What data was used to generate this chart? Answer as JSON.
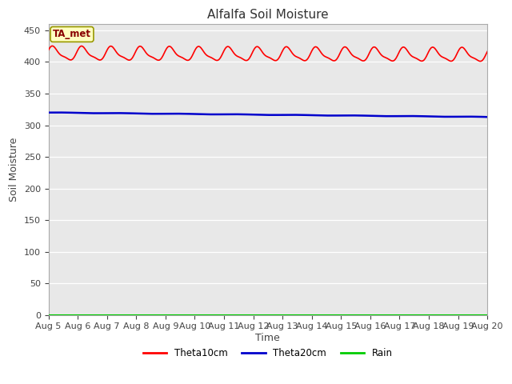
{
  "title": "Alfalfa Soil Moisture",
  "xlabel": "Time",
  "ylabel": "Soil Moisture",
  "annotation": "TA_met",
  "annotation_bg": "#ffffc0",
  "annotation_border": "#999900",
  "annotation_text_color": "#880000",
  "ylim": [
    0,
    460
  ],
  "yticks": [
    0,
    50,
    100,
    150,
    200,
    250,
    300,
    350,
    400,
    450
  ],
  "theta10_color": "#ff0000",
  "theta20_color": "#0000cc",
  "rain_color": "#00cc00",
  "background_color": "#e8e8e8",
  "grid_color": "#ffffff",
  "legend_labels": [
    "Theta10cm",
    "Theta20cm",
    "Rain"
  ],
  "title_fontsize": 11,
  "axis_label_fontsize": 9,
  "tick_fontsize": 8,
  "xtick_labels": [
    "Aug 5",
    "Aug 6",
    "Aug 7",
    "Aug 8",
    "Aug 9",
    "Aug 10",
    "Aug 11",
    "Aug 12",
    "Aug 13",
    "Aug 14",
    "Aug 15",
    "Aug 16",
    "Aug 17",
    "Aug 18",
    "Aug 19",
    "Aug 20"
  ],
  "xtick_positions": [
    0,
    1,
    2,
    3,
    4,
    5,
    6,
    7,
    8,
    9,
    10,
    11,
    12,
    13,
    14,
    15
  ]
}
